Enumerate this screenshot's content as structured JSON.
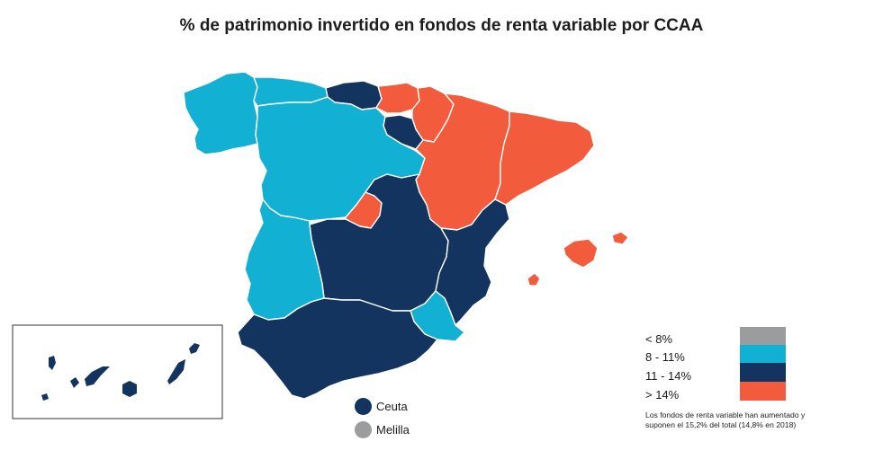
{
  "title": "% de patrimonio invertido en fondos de renta variable por CCAA",
  "colors": {
    "lt8": "#9a9c9e",
    "r8_11": "#12b0d3",
    "r11_14": "#12345e",
    "gt14": "#f25c3d",
    "border": "#ffffff"
  },
  "legend": {
    "items": [
      {
        "label": "< 8%",
        "color": "#9a9c9e"
      },
      {
        "label": "8 - 11%",
        "color": "#12b0d3"
      },
      {
        "label": "11 - 14%",
        "color": "#12345e"
      },
      {
        "label": "> 14%",
        "color": "#f25c3d"
      }
    ],
    "note": "Los fondos de renta variable han aumentado y suponen el 15,2% del total (14,8% en 2018)"
  },
  "cities": [
    {
      "label": "Ceuta",
      "color": "#12345e"
    },
    {
      "label": "Melilla",
      "color": "#9a9c9e"
    }
  ]
}
